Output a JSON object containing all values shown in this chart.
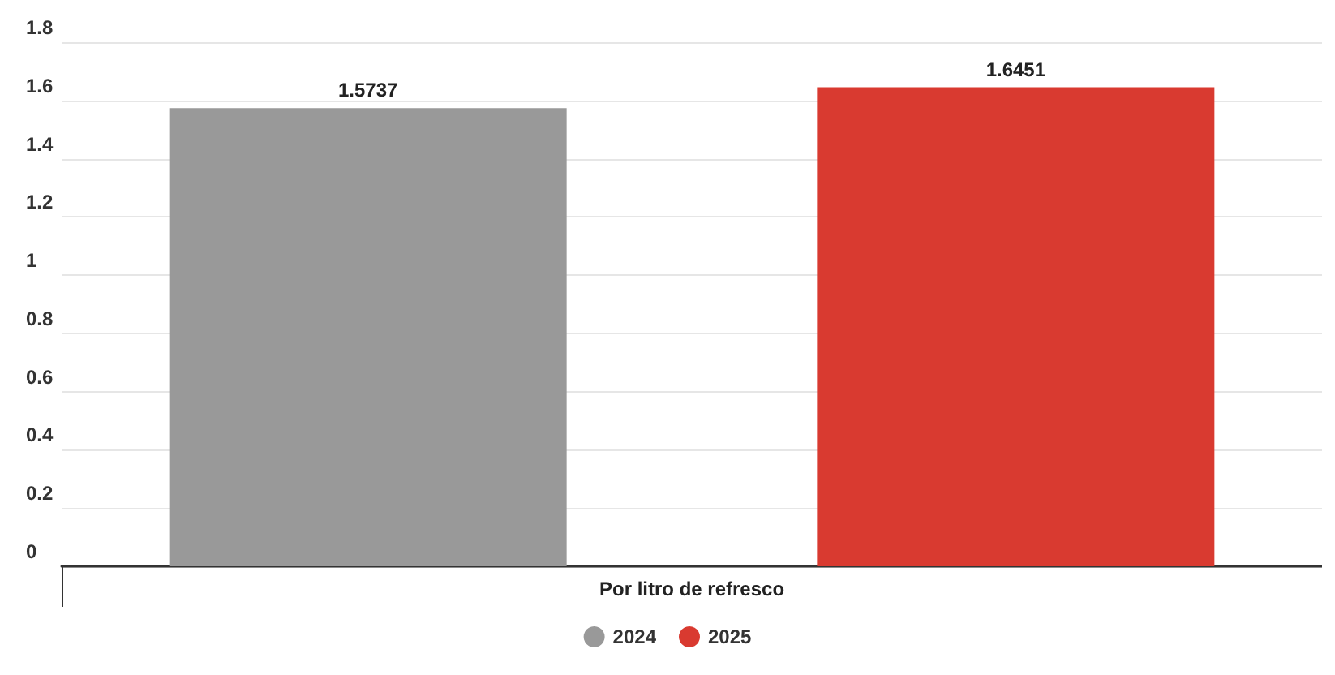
{
  "chart_data": {
    "type": "bar",
    "categories": [
      "Por litro de refresco"
    ],
    "series": [
      {
        "name": "2024",
        "color": "#999999",
        "values": [
          1.5737
        ]
      },
      {
        "name": "2025",
        "color": "#d93a30",
        "values": [
          1.6451
        ]
      }
    ],
    "ylim": [
      0,
      1.8
    ],
    "yticks": [
      0,
      0.2,
      0.4,
      0.6,
      0.8,
      1,
      1.2,
      1.4,
      1.6,
      1.8
    ],
    "grid": "y",
    "legend": "bottom",
    "data_labels": true
  }
}
